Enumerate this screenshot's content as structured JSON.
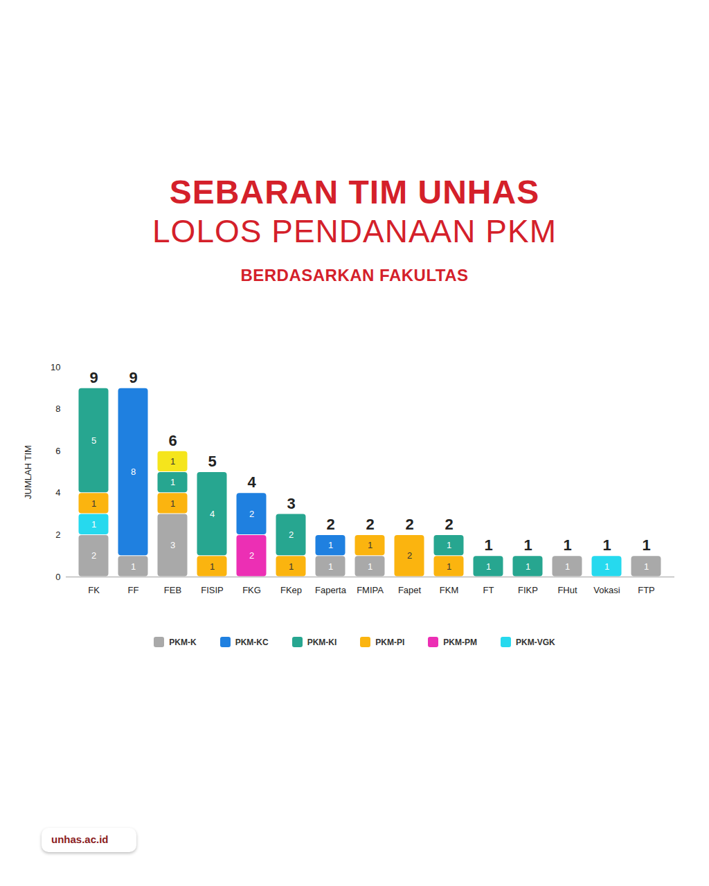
{
  "chart_data": {
    "type": "bar",
    "title": "SEBARAN TIM UNHAS\nLOLOS PENDANAAN PKM",
    "subtitle": "BERDASARKAN FAKULTAS",
    "caption": "unhas.ac.id",
    "y_label": "JUMLAH TIM",
    "categories": [
      "FK",
      "FF",
      "FEB",
      "FISIP",
      "FKG",
      "FKep",
      "Faperta",
      "FMIPA",
      "Fapet",
      "FKM",
      "FT",
      "FIKP",
      "FHut",
      "Vokasi",
      "FTP"
    ],
    "series": [
      {
        "name": "PKM-K",
        "color": "#a9a9a9",
        "values": [
          2,
          1,
          3,
          null,
          null,
          null,
          1,
          1,
          null,
          null,
          null,
          null,
          1,
          null,
          1
        ]
      },
      {
        "name": "PKM-KC",
        "color": "#1f80e0",
        "values": [
          null,
          8,
          null,
          null,
          2,
          null,
          1,
          null,
          null,
          null,
          null,
          null,
          null,
          null,
          null
        ]
      },
      {
        "name": "PKM-KI",
        "color": "#27a690",
        "values": [
          5,
          null,
          1,
          4,
          null,
          2,
          null,
          null,
          null,
          1,
          1,
          1,
          null,
          null,
          null
        ]
      },
      {
        "name": "PKM-PI",
        "color": "#fbb40f",
        "values": [
          1,
          null,
          1,
          1,
          null,
          1,
          null,
          1,
          2,
          1,
          null,
          null,
          null,
          null,
          null
        ]
      },
      {
        "name": "PKM-PM",
        "color": "#ec2fb4",
        "values": [
          null,
          null,
          null,
          null,
          2,
          null,
          null,
          null,
          null,
          null,
          null,
          null,
          null,
          null,
          null
        ]
      },
      {
        "name": "PKM-VGK",
        "color": "#26d9ee",
        "values": [
          1,
          null,
          null,
          null,
          null,
          null,
          null,
          null,
          null,
          null,
          null,
          null,
          null,
          1,
          null
        ]
      },
      {
        "name": null,
        "color": "#f5e51c",
        "values": [
          null,
          null,
          1,
          null,
          null,
          null,
          null,
          null,
          null,
          null,
          null,
          null,
          null,
          null,
          null
        ]
      }
    ],
    "totals": [
      9,
      9,
      6,
      5,
      4,
      3,
      2,
      2,
      2,
      2,
      1,
      1,
      1,
      1,
      1
    ],
    "ylim": [
      0,
      10
    ],
    "yticks": [
      0,
      2,
      4,
      6,
      8,
      10
    ],
    "stacked": true,
    "data_labels": true,
    "grid": false,
    "legend": "bottom"
  }
}
